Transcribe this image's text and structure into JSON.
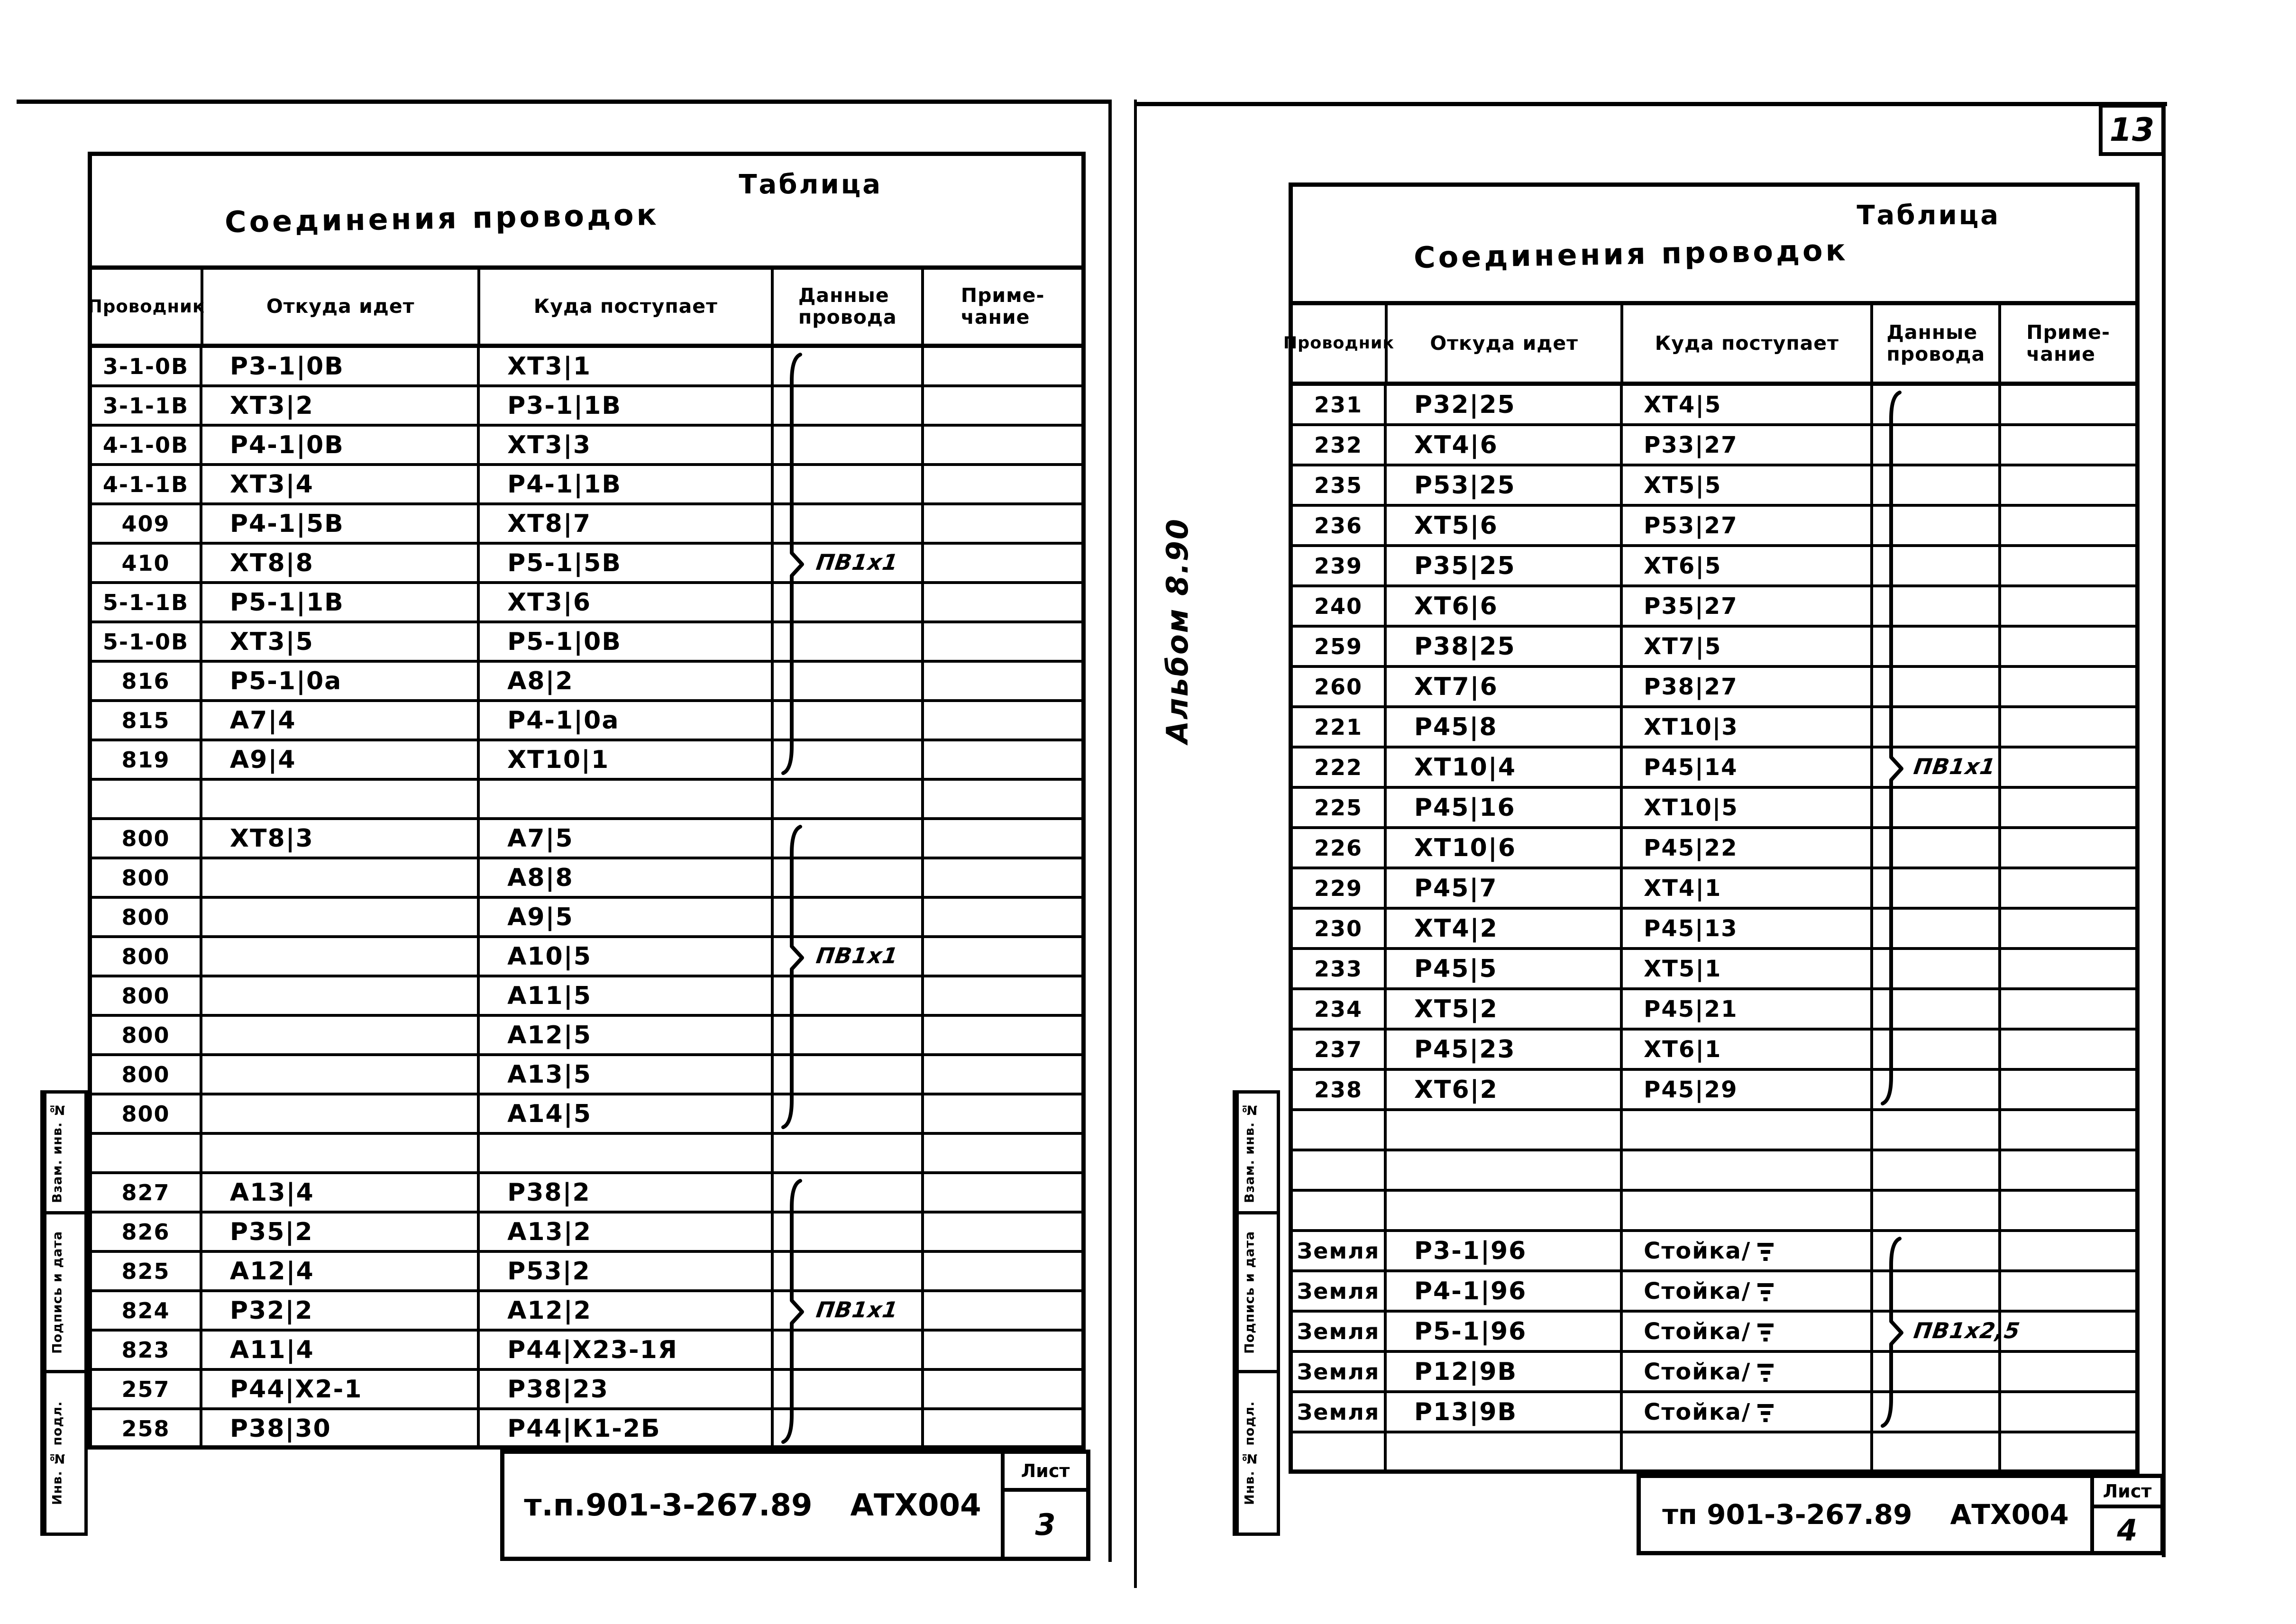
{
  "colors": {
    "ink": "#000000",
    "paper": "#ffffff"
  },
  "page_number_top_right": "13",
  "sheets": [
    {
      "side": "left",
      "title": "Соединения проводок",
      "corner_label": "Таблица",
      "columns": [
        "Проводник",
        "Откуда идет",
        "Куда поступает",
        "Данные\nпровода",
        "Приме-\nчание"
      ],
      "rows": [
        [
          "3-1-0В",
          "Р3-1|0В",
          "ХТ3|1"
        ],
        [
          "3-1-1В",
          "ХТ3|2",
          "Р3-1|1В"
        ],
        [
          "4-1-0В",
          "Р4-1|0В",
          "ХТ3|3"
        ],
        [
          "4-1-1В",
          "ХТ3|4",
          "Р4-1|1В"
        ],
        [
          "409",
          "Р4-1|5В",
          "ХТ8|7"
        ],
        [
          "410",
          "ХТ8|8",
          "Р5-1|5В"
        ],
        [
          "5-1-1В",
          "Р5-1|1В",
          "ХТ3|6"
        ],
        [
          "5-1-0В",
          "ХТ3|5",
          "Р5-1|0В"
        ],
        [
          "816",
          "Р5-1|0а",
          "А8|2"
        ],
        [
          "815",
          "А7|4",
          "Р4-1|0а"
        ],
        [
          "819",
          "А9|4",
          "ХТ10|1"
        ],
        [
          "",
          "",
          ""
        ],
        [
          "800",
          "ХТ8|3",
          "А7|5"
        ],
        [
          "800",
          "",
          "А8|8"
        ],
        [
          "800",
          "",
          "А9|5"
        ],
        [
          "800",
          "",
          "А10|5"
        ],
        [
          "800",
          "",
          "А11|5"
        ],
        [
          "800",
          "",
          "А12|5"
        ],
        [
          "800",
          "",
          "А13|5"
        ],
        [
          "800",
          "",
          "А14|5"
        ],
        [
          "",
          "",
          ""
        ],
        [
          "827",
          "А13|4",
          "Р38|2"
        ],
        [
          "826",
          "Р35|2",
          "А13|2"
        ],
        [
          "825",
          "А12|4",
          "Р53|2"
        ],
        [
          "824",
          "Р32|2",
          "А12|2"
        ],
        [
          "823",
          "А11|4",
          "Р44|Х23-1Я"
        ],
        [
          "257",
          "Р44|Х2-1",
          "Р38|23"
        ],
        [
          "258",
          "Р38|30",
          "Р44|К1-2Б"
        ]
      ],
      "wire_data_braces": [
        {
          "from_row": 1,
          "to_row": 11,
          "label_row": 6,
          "label": "ПВ1х1"
        },
        {
          "from_row": 13,
          "to_row": 20,
          "label_row": 16,
          "label": "ПВ1х1"
        },
        {
          "from_row": 22,
          "to_row": 28,
          "label_row": 25,
          "label": "ПВ1х1"
        }
      ],
      "footer": {
        "doc_code": "т.п.901-3-267.89",
        "doc_name": "АТХ004",
        "sheet_label": "Лист",
        "sheet_number": "3"
      },
      "side_stamp": [
        "Взам. инв. №",
        "Подпись и дата",
        "Инв. № подл."
      ]
    },
    {
      "side": "right",
      "title": "Соединения проводок",
      "corner_label": "Таблица",
      "margin_note": "Альбом 8.90",
      "columns": [
        "Проводник",
        "Откуда идет",
        "Куда поступает",
        "Данные\nпровода",
        "Приме-\nчание"
      ],
      "rows": [
        [
          "231",
          "Р32|25",
          "ХТ4|5"
        ],
        [
          "232",
          "ХТ4|6",
          "Р33|27"
        ],
        [
          "235",
          "Р53|25",
          "ХТ5|5"
        ],
        [
          "236",
          "ХТ5|6",
          "Р53|27"
        ],
        [
          "239",
          "Р35|25",
          "ХТ6|5"
        ],
        [
          "240",
          "ХТ6|6",
          "Р35|27"
        ],
        [
          "259",
          "Р38|25",
          "ХТ7|5"
        ],
        [
          "260",
          "ХТ7|6",
          "Р38|27"
        ],
        [
          "221",
          "Р45|8",
          "ХТ10|3"
        ],
        [
          "222",
          "ХТ10|4",
          "Р45|14"
        ],
        [
          "225",
          "Р45|16",
          "ХТ10|5"
        ],
        [
          "226",
          "ХТ10|6",
          "Р45|22"
        ],
        [
          "229",
          "Р45|7",
          "ХТ4|1"
        ],
        [
          "230",
          "ХТ4|2",
          "Р45|13"
        ],
        [
          "233",
          "Р45|5",
          "ХТ5|1"
        ],
        [
          "234",
          "ХТ5|2",
          "Р45|21"
        ],
        [
          "237",
          "Р45|23",
          "ХТ6|1"
        ],
        [
          "238",
          "ХТ6|2",
          "Р45|29"
        ],
        [
          "",
          "",
          ""
        ],
        [
          "",
          "",
          ""
        ],
        [
          "",
          "",
          ""
        ],
        [
          "Земля",
          "Р3-1|96",
          "Стойка/⏚"
        ],
        [
          "Земля",
          "Р4-1|96",
          "Стойка/⏚"
        ],
        [
          "Земля",
          "Р5-1|96",
          "Стойка/⏚"
        ],
        [
          "Земля",
          "Р12|9В",
          "Стойка/⏚"
        ],
        [
          "Земля",
          "Р13|9В",
          "Стойка/⏚"
        ],
        [
          "",
          "",
          ""
        ]
      ],
      "wire_data_braces": [
        {
          "from_row": 1,
          "to_row": 18,
          "label_row": 10,
          "label": "ПВ1х1"
        },
        {
          "from_row": 22,
          "to_row": 26,
          "label_row": 24,
          "label": "ПВ1х2,5"
        }
      ],
      "footer": {
        "doc_code": "тп 901-3-267.89",
        "doc_name": "АТХ004",
        "sheet_label": "Лист",
        "sheet_number": "4"
      },
      "side_stamp": [
        "Взам. инв. №",
        "Подпись и дата",
        "Инв. № подл."
      ]
    }
  ]
}
